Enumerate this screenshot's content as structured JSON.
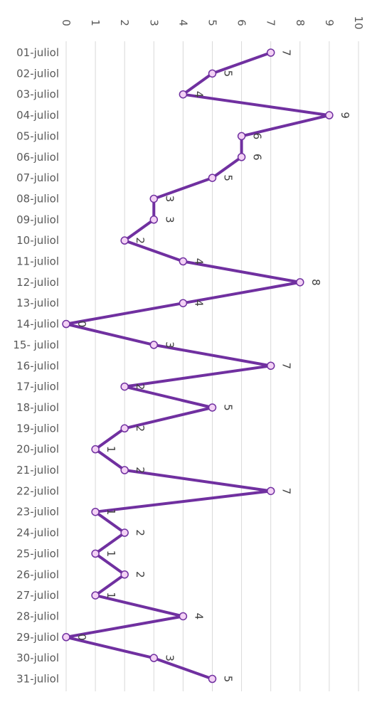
{
  "chart_data": {
    "type": "line",
    "orientation": "rotated-90",
    "categories": [
      "01-juliol",
      "02-juliol",
      "03-juliol",
      "04-juliol",
      "05-juliol",
      "06-juliol",
      "07-juliol",
      "08-juliol",
      "09-juliol",
      "10-juliol",
      "11-juliol",
      "12-juliol",
      "13-juliol",
      "14-juliol",
      "15- juliol",
      "16-juliol",
      "17-juliol",
      "18-juliol",
      "19-juliol",
      "20-juliol",
      "21-juliol",
      "22-juliol",
      "23-juliol",
      "24-juliol",
      "25-juliol",
      "26-juliol",
      "27-juliol",
      "28-juliol",
      "29-juliol",
      "30-juliol",
      "31-juliol"
    ],
    "values": [
      7,
      5,
      4,
      9,
      6,
      6,
      5,
      3,
      3,
      2,
      4,
      8,
      4,
      0,
      3,
      7,
      2,
      5,
      2,
      1,
      2,
      7,
      1,
      2,
      1,
      2,
      1,
      4,
      0,
      3,
      5
    ],
    "ylim": [
      0,
      10
    ],
    "yticks": [
      "0",
      "1",
      "2",
      "3",
      "4",
      "5",
      "6",
      "7",
      "8",
      "9",
      "10"
    ],
    "grid": true,
    "data_labels": true
  },
  "colors": {
    "line": "#7030a0",
    "marker_fill": "#f3d1f5",
    "grid": "#d9d9d9",
    "text": "#595959"
  }
}
